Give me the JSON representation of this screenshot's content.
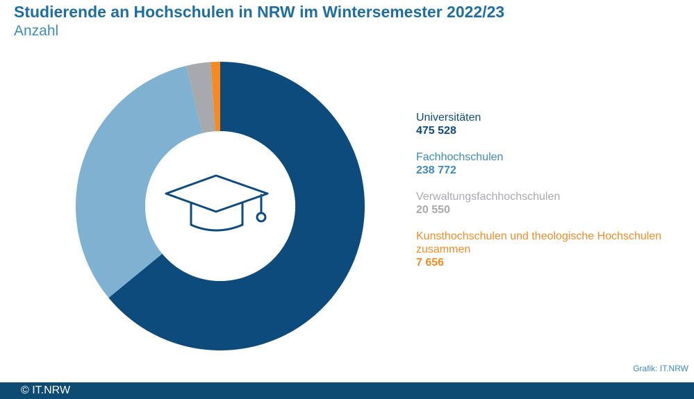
{
  "chart_data": {
    "type": "pie",
    "title": "Studierende an Hochschulen in NRW im Wintersemester 2022/23",
    "subtitle": "Anzahl",
    "categories": [
      "Universitäten",
      "Fachhochschulen",
      "Verwaltungsfachhochschulen",
      "Kunsthochschulen und theologische Hochschulen zusammen"
    ],
    "values": [
      475528,
      238772,
      20550,
      7656
    ],
    "value_labels": [
      "475 528",
      "238 772",
      "20 550",
      "7 656"
    ],
    "colors": [
      "#0d4b7d",
      "#7fb2d1",
      "#a7a9ac",
      "#f7891f"
    ],
    "label_colors": [
      "#0d4b7d",
      "#3d8bbb",
      "#a7a9ac",
      "#f28c28"
    ],
    "legend_position": "right",
    "center_icon": "graduation-cap-icon"
  },
  "credit": "Grafik: IT.NRW",
  "footer": {
    "text": "© IT.NRW"
  }
}
